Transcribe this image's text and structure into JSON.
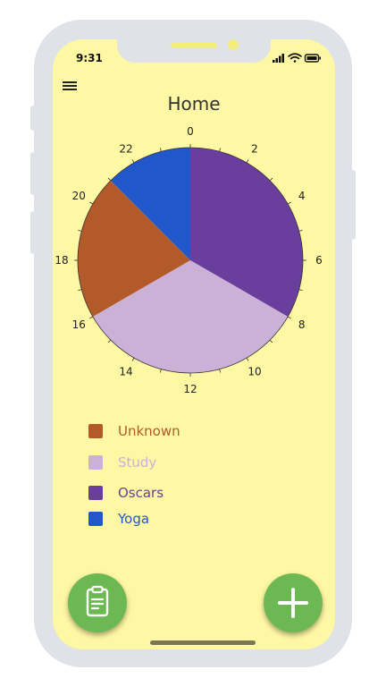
{
  "status_bar": {
    "time": "9:31"
  },
  "header": {
    "title": "Home"
  },
  "chart_data": {
    "type": "pie",
    "title": "",
    "clock_ticks": [
      "0",
      "2",
      "4",
      "6",
      "8",
      "10",
      "12",
      "14",
      "16",
      "18",
      "20",
      "22"
    ],
    "clock_range": [
      0,
      24
    ],
    "slices": [
      {
        "label": "Oscars",
        "start": 0,
        "end": 8,
        "color": "#6a3e9c"
      },
      {
        "label": "Study",
        "start": 8,
        "end": 16,
        "color": "#cbb1d8"
      },
      {
        "label": "Unknown",
        "start": 16,
        "end": 21,
        "color": "#b25a29"
      },
      {
        "label": "Yoga",
        "start": 21,
        "end": 24,
        "color": "#2257cc"
      }
    ]
  },
  "legend": {
    "items": [
      {
        "label": "Unknown",
        "color": "#b25a29"
      },
      {
        "label": "Study",
        "color": "#cbb1d8"
      },
      {
        "label": "Oscars",
        "color": "#6a3e9c"
      },
      {
        "label": "Yoga",
        "color": "#2257cc"
      }
    ]
  },
  "fabs": {
    "left_icon": "clipboard-icon",
    "right_icon": "plus-icon"
  },
  "colors": {
    "screen_bg": "#fef7a3",
    "fab": "#6cb954",
    "device_frame": "#dfe2e7"
  }
}
